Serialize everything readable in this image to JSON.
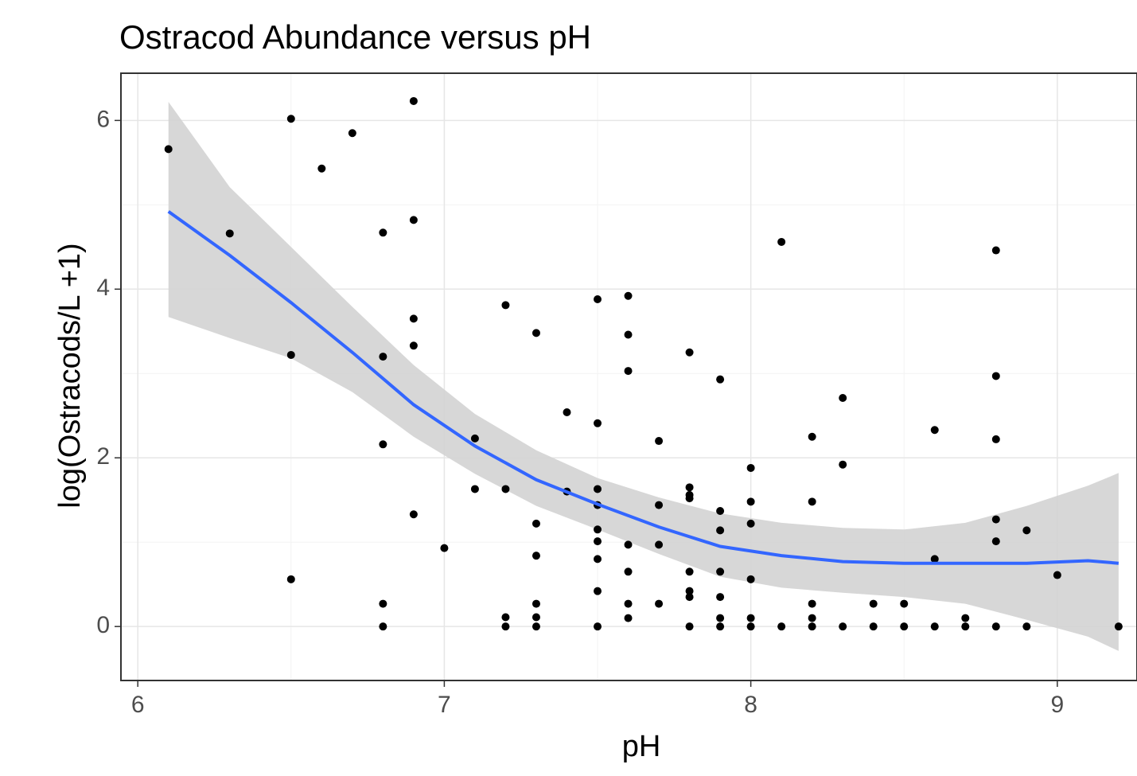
{
  "chart_data": {
    "type": "scatter",
    "title": "Ostracod Abundance versus pH",
    "x_label": "pH",
    "y_label": "log(Ostracods/L +1)",
    "xlim": [
      5.945,
      9.26
    ],
    "ylim": [
      -0.64,
      6.56
    ],
    "xticks": [
      6,
      7,
      8,
      9
    ],
    "yticks": [
      0,
      2,
      4,
      6
    ],
    "xminor": [
      6.5,
      7.5,
      8.5
    ],
    "yminor": [
      1,
      3,
      5
    ],
    "grid": true,
    "points": {
      "color": "#000000",
      "x": [
        6.1,
        6.3,
        6.5,
        6.5,
        6.5,
        6.6,
        6.7,
        6.8,
        6.8,
        6.8,
        6.8,
        6.8,
        6.9,
        6.9,
        6.9,
        6.9,
        6.9,
        7.0,
        7.1,
        7.1,
        7.2,
        7.2,
        7.2,
        7.2,
        7.3,
        7.3,
        7.3,
        7.3,
        7.3,
        7.3,
        7.4,
        7.4,
        7.5,
        7.5,
        7.5,
        7.5,
        7.5,
        7.5,
        7.5,
        7.5,
        7.5,
        7.6,
        7.6,
        7.6,
        7.6,
        7.6,
        7.6,
        7.6,
        7.7,
        7.7,
        7.7,
        7.7,
        7.8,
        7.8,
        7.8,
        7.8,
        7.8,
        7.8,
        7.8,
        7.8,
        7.9,
        7.9,
        7.9,
        7.9,
        7.9,
        7.9,
        7.9,
        8.0,
        8.0,
        8.0,
        8.0,
        8.0,
        8.0,
        8.1,
        8.1,
        8.2,
        8.2,
        8.2,
        8.2,
        8.2,
        8.3,
        8.3,
        8.3,
        8.4,
        8.4,
        8.5,
        8.5,
        8.6,
        8.6,
        8.6,
        8.7,
        8.7,
        8.8,
        8.8,
        8.8,
        8.8,
        8.8,
        8.8,
        8.9,
        8.9,
        9.0,
        9.2
      ],
      "y": [
        5.66,
        4.66,
        6.02,
        3.22,
        0.56,
        5.43,
        5.85,
        4.67,
        3.2,
        2.16,
        0.27,
        0,
        6.23,
        4.82,
        3.65,
        3.33,
        1.33,
        0.93,
        2.23,
        1.63,
        3.81,
        1.63,
        0.11,
        0,
        3.48,
        1.22,
        0.84,
        0.27,
        0.11,
        0,
        2.54,
        1.6,
        3.88,
        2.41,
        1.63,
        1.44,
        1.15,
        1.01,
        0.8,
        0.42,
        0,
        3.92,
        3.46,
        3.03,
        0.97,
        0.65,
        0.27,
        0.1,
        2.2,
        1.44,
        0.97,
        0.27,
        3.25,
        1.65,
        1.56,
        1.52,
        0.65,
        0.42,
        0.35,
        0,
        2.93,
        1.37,
        1.14,
        0.65,
        0.35,
        0.1,
        0,
        1.88,
        1.48,
        1.22,
        0.56,
        0.1,
        0,
        4.56,
        0,
        2.25,
        1.48,
        0.27,
        0.1,
        0,
        2.71,
        1.92,
        0,
        0.27,
        0,
        0.27,
        0,
        2.33,
        0.8,
        0,
        0.1,
        0,
        4.46,
        2.97,
        2.22,
        1.27,
        1.01,
        0,
        1.14,
        0,
        0.61,
        0
      ]
    },
    "smooth": {
      "color": "#3366ff",
      "band_color": "#d3d3d3",
      "x": [
        6.1,
        6.3,
        6.5,
        6.7,
        6.9,
        7.1,
        7.3,
        7.5,
        7.7,
        7.9,
        8.1,
        8.3,
        8.5,
        8.7,
        8.9,
        9.1,
        9.2
      ],
      "values": [
        4.92,
        4.4,
        3.84,
        3.25,
        2.63,
        2.14,
        1.74,
        1.45,
        1.18,
        0.95,
        0.84,
        0.77,
        0.75,
        0.75,
        0.75,
        0.78,
        0.75
      ],
      "lower": [
        3.67,
        3.42,
        3.18,
        2.78,
        2.25,
        1.81,
        1.43,
        1.15,
        0.86,
        0.59,
        0.46,
        0.4,
        0.35,
        0.27,
        0.08,
        -0.12,
        -0.29
      ],
      "upper": [
        6.22,
        5.21,
        4.5,
        3.79,
        3.1,
        2.52,
        2.09,
        1.76,
        1.53,
        1.34,
        1.23,
        1.17,
        1.15,
        1.23,
        1.43,
        1.67,
        1.82
      ]
    }
  }
}
